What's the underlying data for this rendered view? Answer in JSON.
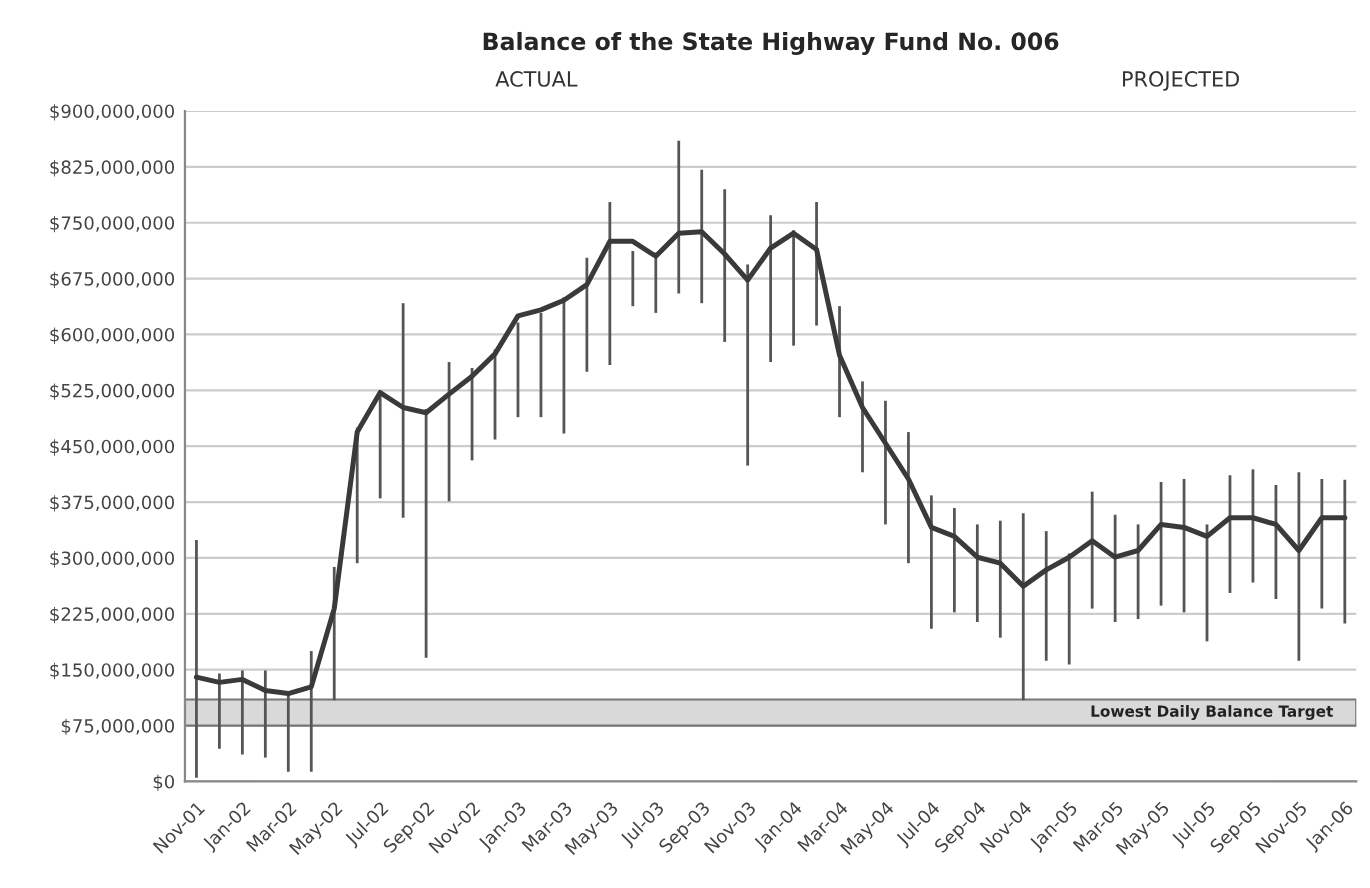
{
  "chart_data": {
    "type": "line",
    "title": "Balance of the State Highway Fund No. 006",
    "categories": [
      "Nov-01",
      null,
      "Jan-02",
      null,
      "Mar-02",
      null,
      "May-02",
      null,
      "Jul-02",
      null,
      "Sep-02",
      null,
      "Nov-02",
      null,
      "Jan-03",
      null,
      "Mar-03",
      null,
      "May-03",
      null,
      "Jul-03",
      null,
      "Sep-03",
      null,
      "Nov-03",
      null,
      "Jan-04",
      null,
      "Mar-04",
      null,
      "May-04",
      null,
      "Jul-04",
      null,
      "Sep-04",
      null,
      "Nov-04",
      null,
      "Jan-05",
      null,
      "Mar-05",
      null,
      "May-05",
      null,
      "Jul-05",
      null,
      "Sep-05",
      null,
      "Nov-05",
      null,
      "Jan-06"
    ],
    "series": [
      {
        "color": "#3a3a3a",
        "values": [
          140000000,
          133000000,
          137000000,
          122000000,
          118000000,
          127000000,
          232000000,
          469000000,
          522000000,
          502000000,
          495000000,
          520000000,
          544000000,
          574000000,
          625000000,
          633000000,
          646000000,
          667000000,
          725000000,
          725000000,
          705000000,
          736000000,
          738000000,
          708000000,
          673000000,
          716000000,
          736000000,
          714000000,
          572000000,
          502000000,
          454000000,
          406000000,
          341000000,
          329000000,
          301000000,
          293000000,
          262000000,
          284000000,
          301000000,
          323000000,
          301000000,
          310000000,
          345000000,
          341000000,
          329000000,
          354000000,
          354000000,
          345000000,
          310000000,
          354000000,
          354000000
        ],
        "errors": [
          [
            5000000,
            324000000
          ],
          [
            44000000,
            145000000
          ],
          [
            36000000,
            149000000
          ],
          [
            32000000,
            149000000
          ],
          [
            13000000,
            120000000
          ],
          [
            13000000,
            175000000
          ],
          [
            109000000,
            288000000
          ],
          [
            293000000,
            475000000
          ],
          [
            380000000,
            525000000
          ],
          [
            354000000,
            642000000
          ],
          [
            166000000,
            500000000
          ],
          [
            376000000,
            563000000
          ],
          [
            431000000,
            555000000
          ],
          [
            459000000,
            580000000
          ],
          [
            489000000,
            616000000
          ],
          [
            489000000,
            629000000
          ],
          [
            467000000,
            650000000
          ],
          [
            550000000,
            703000000
          ],
          [
            559000000,
            778000000
          ],
          [
            638000000,
            712000000
          ],
          [
            629000000,
            710000000
          ],
          [
            655000000,
            860000000
          ],
          [
            642000000,
            821000000
          ],
          [
            590000000,
            795000000
          ],
          [
            424000000,
            694000000
          ],
          [
            563000000,
            760000000
          ],
          [
            585000000,
            740000000
          ],
          [
            612000000,
            778000000
          ],
          [
            489000000,
            638000000
          ],
          [
            415000000,
            537000000
          ],
          [
            345000000,
            511000000
          ],
          [
            293000000,
            469000000
          ],
          [
            205000000,
            384000000
          ],
          [
            227000000,
            367000000
          ],
          [
            214000000,
            345000000
          ],
          [
            193000000,
            350000000
          ],
          [
            109000000,
            360000000
          ],
          [
            162000000,
            336000000
          ],
          [
            157000000,
            306000000
          ],
          [
            232000000,
            389000000
          ],
          [
            214000000,
            358000000
          ],
          [
            218000000,
            345000000
          ],
          [
            236000000,
            402000000
          ],
          [
            227000000,
            406000000
          ],
          [
            188000000,
            345000000
          ],
          [
            253000000,
            411000000
          ],
          [
            267000000,
            419000000
          ],
          [
            245000000,
            398000000
          ],
          [
            162000000,
            415000000
          ],
          [
            232000000,
            406000000
          ],
          [
            212000000,
            405000000
          ]
        ]
      }
    ],
    "ylim": [
      0,
      900000000
    ],
    "yticks": [
      {
        "value": 0,
        "label": "$0"
      },
      {
        "value": 75000000,
        "label": "$75,000,000"
      },
      {
        "value": 150000000,
        "label": "$150,000,000"
      },
      {
        "value": 225000000,
        "label": "$225,000,000"
      },
      {
        "value": 300000000,
        "label": "$300,000,000"
      },
      {
        "value": 375000000,
        "label": "$375,000,000"
      },
      {
        "value": 450000000,
        "label": "$450,000,000"
      },
      {
        "value": 525000000,
        "label": "$525,000,000"
      },
      {
        "value": 600000000,
        "label": "$600,000,000"
      },
      {
        "value": 675000000,
        "label": "$675,000,000"
      },
      {
        "value": 750000000,
        "label": "$750,000,000"
      },
      {
        "value": 825000000,
        "label": "$825,000,000"
      },
      {
        "value": 900000000,
        "label": "$900,000,000"
      }
    ],
    "bands": [
      {
        "axis": "y",
        "from": 75000000,
        "to": 110000000,
        "label": "Lowest Daily Balance Target",
        "color": "#d9d9d9"
      }
    ],
    "annotations": [
      "ACTUAL",
      "PROJECTED"
    ],
    "grid": "y",
    "marker": "none",
    "line_style": "solid",
    "legend": false
  }
}
